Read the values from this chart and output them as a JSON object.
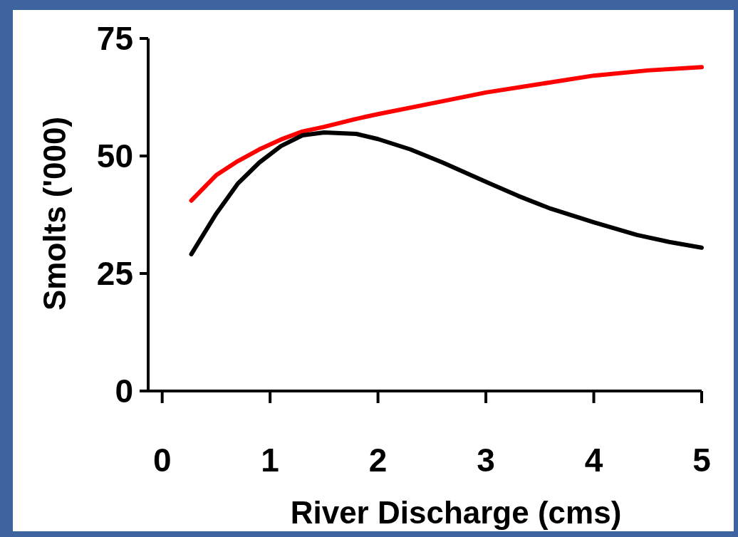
{
  "chart_data": {
    "type": "line",
    "xlabel": "River Discharge (cms)",
    "ylabel": "Smolts ('000)",
    "xlim": [
      -0.13,
      5
    ],
    "xticks": [
      0,
      1,
      2,
      3,
      4,
      5
    ],
    "ylim": [
      0,
      75
    ],
    "yticks": [
      0,
      25,
      50,
      75
    ],
    "grid": false,
    "marker": "none",
    "line_style": "solid",
    "series": [
      {
        "color": "#ff0000",
        "x": [
          0.27,
          0.5,
          0.7,
          0.9,
          1.1,
          1.3,
          1.5,
          1.8,
          2.0,
          2.5,
          3.0,
          3.5,
          4.0,
          4.5,
          5.0
        ],
        "values": [
          40.5,
          45.9,
          48.9,
          51.4,
          53.5,
          55.2,
          56.2,
          57.9,
          58.9,
          61.2,
          63.5,
          65.3,
          67.1,
          68.2,
          68.9
        ]
      },
      {
        "color": "#000000",
        "x": [
          0.27,
          0.5,
          0.7,
          0.9,
          1.1,
          1.3,
          1.5,
          1.8,
          2.0,
          2.3,
          2.6,
          3.0,
          3.3,
          3.6,
          4.0,
          4.4,
          4.7,
          5.0
        ],
        "values": [
          29.1,
          37.7,
          44.1,
          48.6,
          52.1,
          54.4,
          55.0,
          54.7,
          53.6,
          51.4,
          48.6,
          44.5,
          41.5,
          38.8,
          35.9,
          33.2,
          31.7,
          30.5
        ]
      }
    ]
  }
}
